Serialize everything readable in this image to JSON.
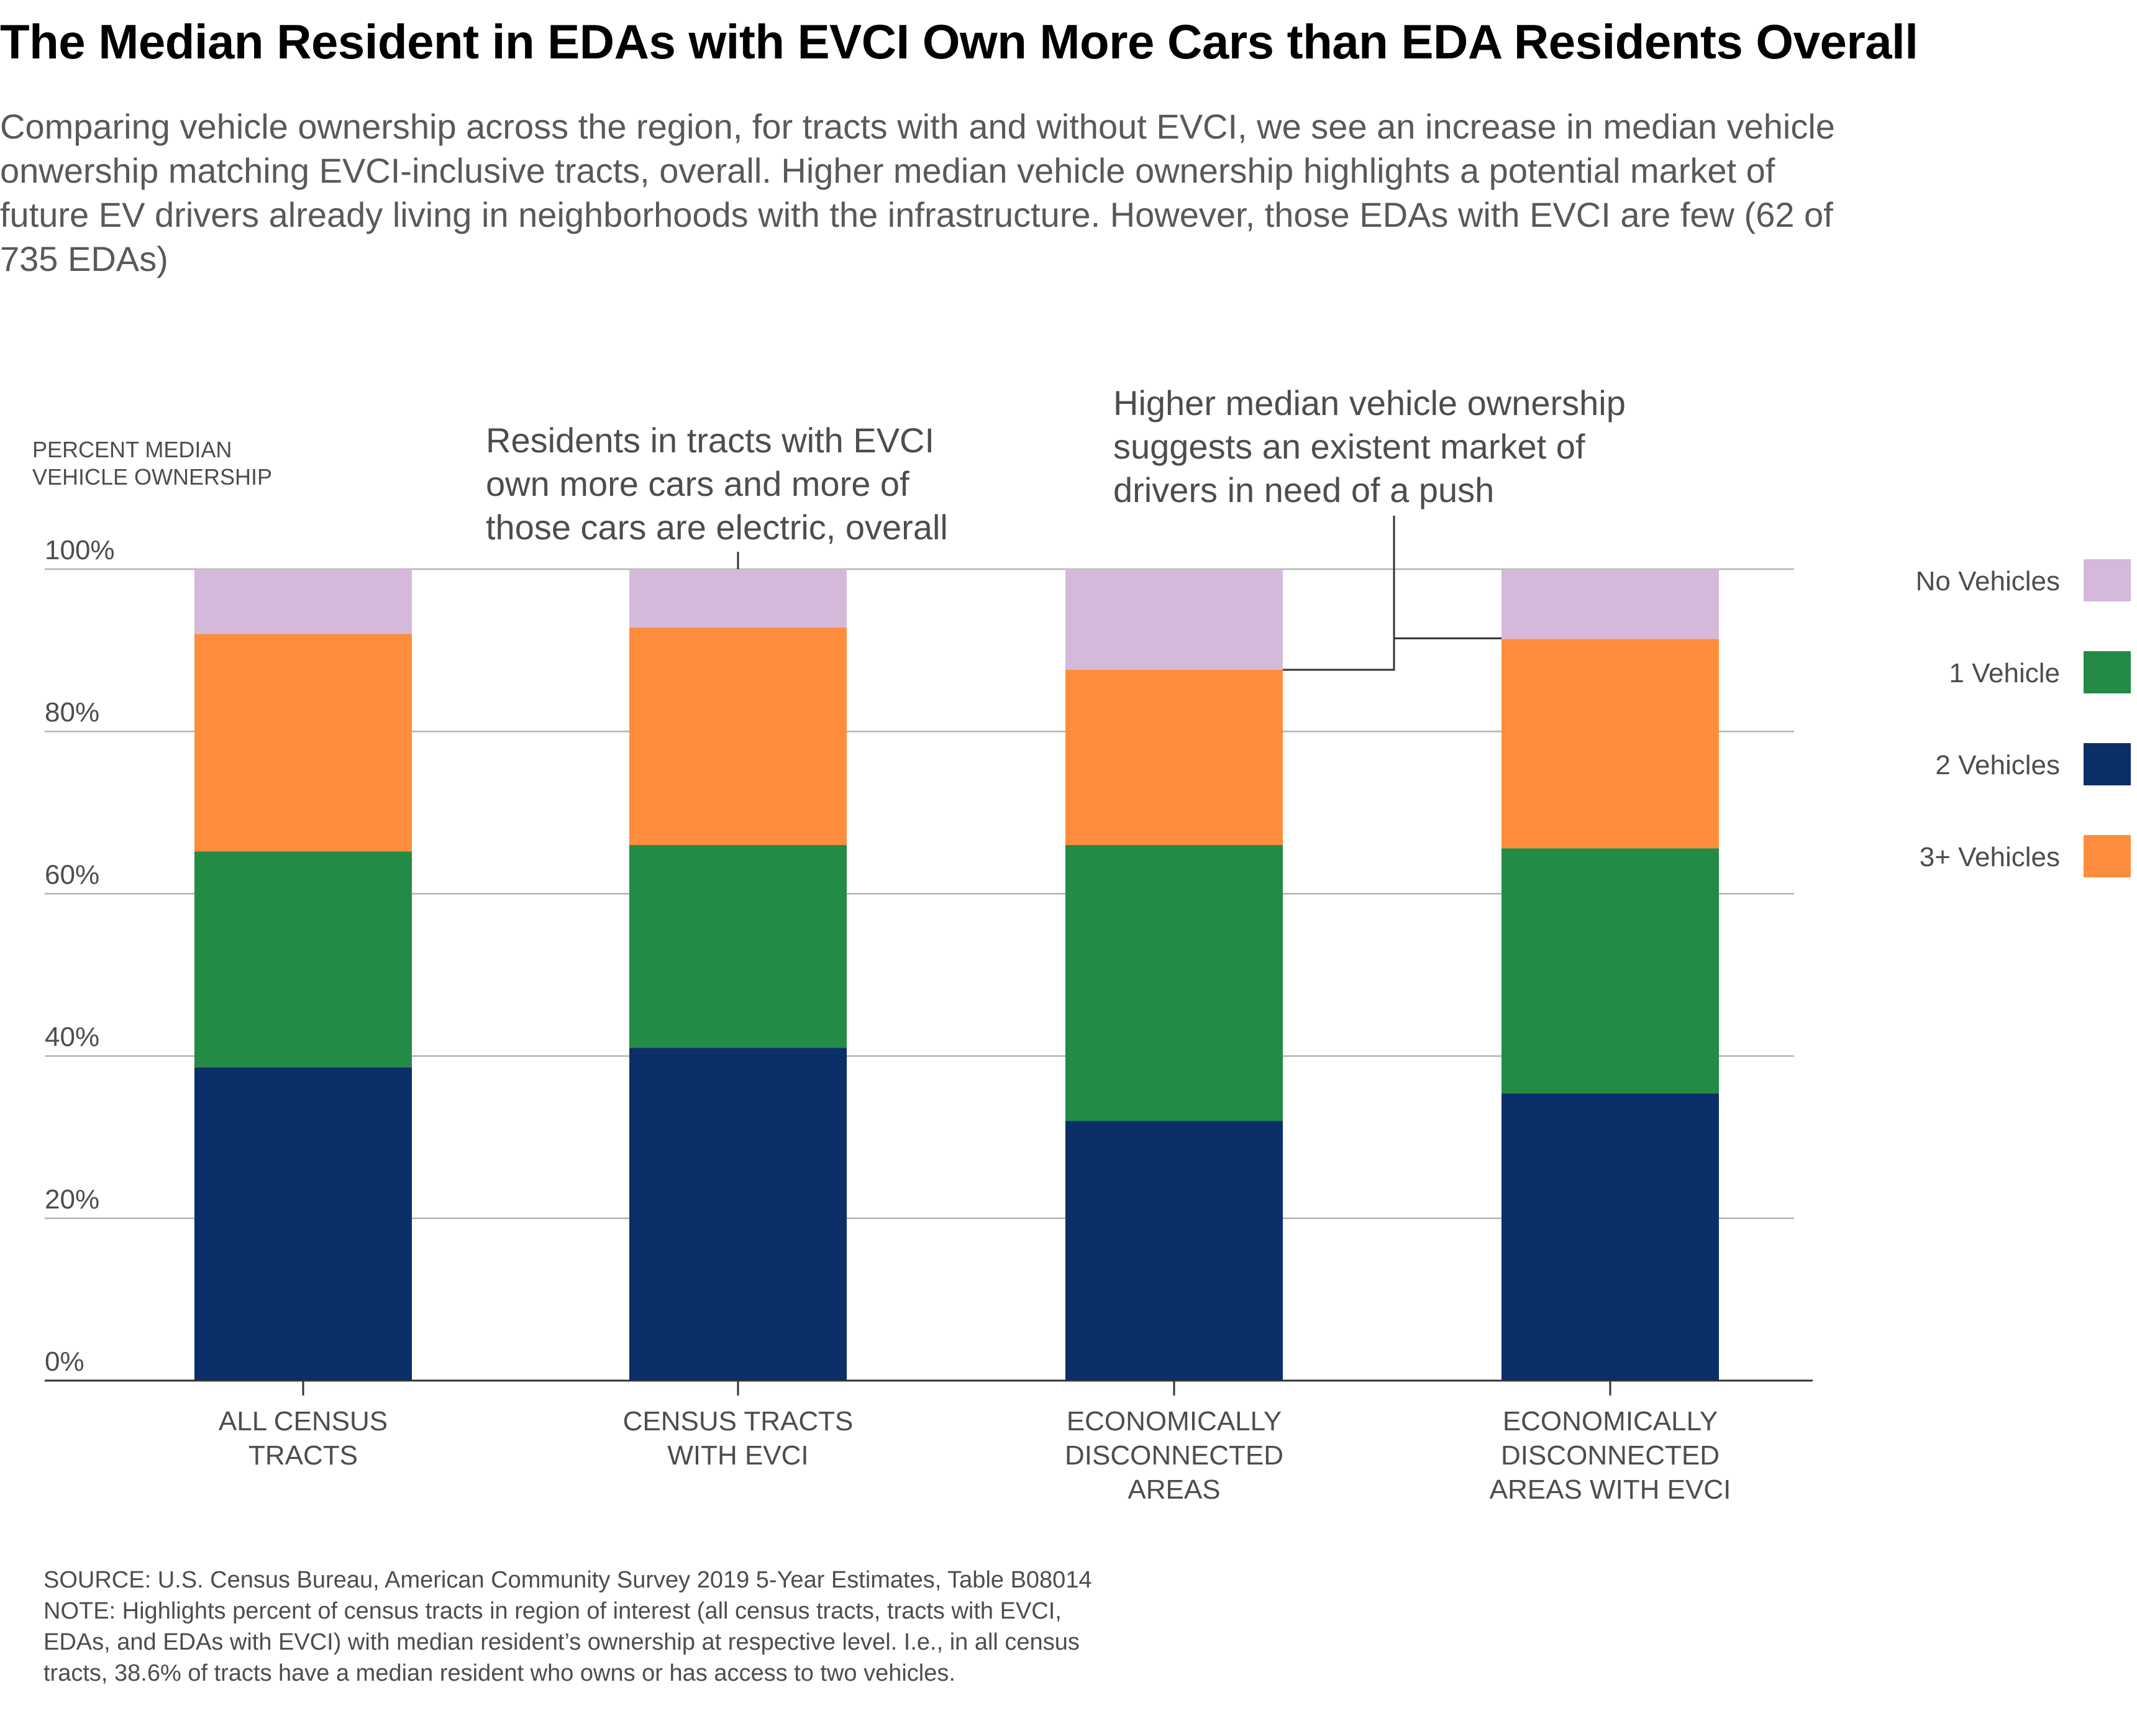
{
  "title": "The Median Resident in EDAs with EVCI Own More Cars than EDA Residents Overall",
  "subtitle": "Comparing vehicle ownership across the region, for tracts with and without EVCI, we see an increase in median vehicle onwership matching EVCI-inclusive tracts, overall. Higher median vehicle ownership highlights a potential market of future EV drivers already living in neighborhoods with the infrastructure. However, those EDAs with EVCI are few (62 of 735 EDAs)",
  "source": "SOURCE: U.S. Census Bureau, American Community Survey 2019 5-Year Estimates, Table B08014",
  "note_lines": [
    "NOTE: Highlights percent of census tracts in region of interest (all census tracts, tracts with EVCI,",
    "EDAs, and EDAs with EVCI) with median resident’s ownership at respective level. I.e., in all census",
    "tracts, 38.6% of tracts have a median resident who owns or has access to two vehicles."
  ],
  "colors": {
    "No Vehicles": "#d5b9db",
    "1 Vehicle": "#238b45",
    "2 Vehicles": "#0a2f69",
    "3+ Vehicles": "#fd8d3c",
    "grid": "#b3b3b3",
    "axis": "#333333",
    "annotation_line": "#333333"
  },
  "chart_data": {
    "type": "bar",
    "stacked": true,
    "ylabel": [
      "PERCENT MEDIAN",
      "VEHICLE OWNERSHIP"
    ],
    "ylim": [
      0,
      100
    ],
    "yticks": [
      0,
      20,
      40,
      60,
      80,
      100
    ],
    "ytick_labels": [
      "0%",
      "20%",
      "40%",
      "60%",
      "80%",
      "100%"
    ],
    "grid": true,
    "legend_position": "right",
    "categories": [
      [
        "ALL CENSUS",
        "TRACTS"
      ],
      [
        "CENSUS TRACTS",
        "WITH EVCI"
      ],
      [
        "ECONOMICALLY",
        "DISCONNECTED",
        "AREAS"
      ],
      [
        "ECONOMICALLY",
        "DISCONNECTED",
        "AREAS WITH EVCI"
      ]
    ],
    "series": [
      {
        "name": "2 Vehicles",
        "values": [
          38.6,
          41.0,
          32.0,
          35.4
        ]
      },
      {
        "name": "1 Vehicle",
        "values": [
          26.6,
          25.0,
          34.0,
          30.2
        ]
      },
      {
        "name": "3+ Vehicles",
        "values": [
          26.8,
          26.8,
          21.6,
          25.8
        ]
      },
      {
        "name": "No Vehicles",
        "values": [
          8.0,
          7.2,
          12.4,
          8.6
        ]
      }
    ],
    "legend_order": [
      "No Vehicles",
      "1 Vehicle",
      "2 Vehicles",
      "3+ Vehicles"
    ],
    "annotations": [
      {
        "lines": [
          "Residents in tracts with EVCI",
          "own more cars and more of",
          "those cars are electric, overall"
        ],
        "target_category": 1
      },
      {
        "lines": [
          "Higher median vehicle ownership",
          "suggests an existent market of",
          "drivers in need of a push"
        ],
        "target_categories": [
          2,
          3
        ]
      }
    ]
  }
}
